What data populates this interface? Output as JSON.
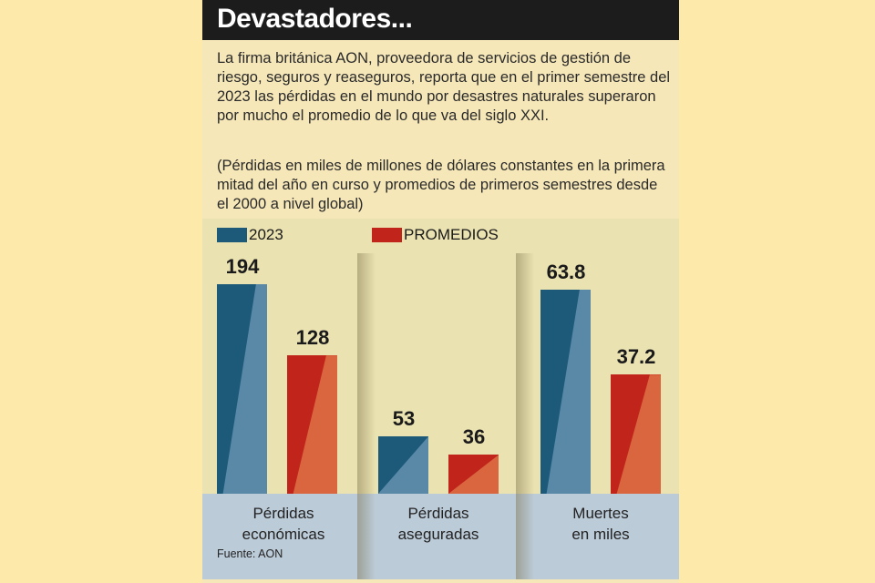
{
  "title": "Devastadores...",
  "intro": "La firma británica AON, proveedora de servicios de gestión de riesgo, seguros y reaseguros, reporta que en el primer semestre del 2023 las pérdidas en el mundo por desastres naturales superaron por mucho el promedio de lo que va del siglo XXI.",
  "note": "(Pérdidas en miles de millones de dólares constantes en la primera mitad del año en curso y promedios de primeros semestres desde el 2000 a nivel global)",
  "source": "Fuente: AON",
  "chart_data": {
    "type": "bar",
    "categories": [
      "Pérdidas económicas",
      "Pérdidas aseguradas",
      "Muertes en miles"
    ],
    "category_lines": [
      [
        "Pérdidas",
        "económicas"
      ],
      [
        "Pérdidas",
        "aseguradas"
      ],
      [
        "Muertes",
        "en miles"
      ]
    ],
    "series": [
      {
        "name": "2023",
        "color": "#1d5a7a",
        "values": [
          194,
          53,
          63.8
        ],
        "labels": [
          "194",
          "53",
          "63.8"
        ]
      },
      {
        "name": "PROMEDIOS",
        "color": "#c0241a",
        "values": [
          128,
          36,
          37.2
        ],
        "labels": [
          "128",
          "36",
          "37.2"
        ]
      }
    ],
    "legend": "top",
    "grid": false,
    "axes_shown": false
  }
}
